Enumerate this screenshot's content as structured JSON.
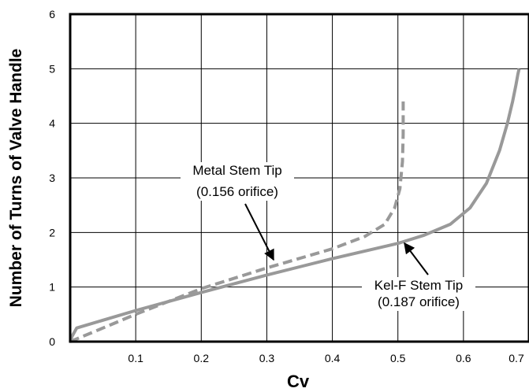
{
  "chart_data": {
    "type": "line",
    "xlabel": "Cv",
    "ylabel": "Number of Turns of Valve Handle",
    "xlim": [
      0,
      0.7
    ],
    "ylim": [
      0,
      6
    ],
    "x_ticks": [
      "0.1",
      "0.2",
      "0.3",
      "0.4",
      "0.5",
      "0.6",
      "0.7"
    ],
    "y_ticks": [
      "0",
      "1",
      "2",
      "3",
      "4",
      "5",
      "6"
    ],
    "grid": true,
    "series": [
      {
        "name": "Kel-F Stem Tip (0.187 orifice)",
        "style": "solid",
        "color": "#999999",
        "x": [
          0.0,
          0.003,
          0.01,
          0.1,
          0.2,
          0.3,
          0.4,
          0.5,
          0.54,
          0.58,
          0.61,
          0.635,
          0.655,
          0.667,
          0.675,
          0.68,
          0.683,
          0.685
        ],
        "y": [
          0.0,
          0.1,
          0.25,
          0.57,
          0.9,
          1.22,
          1.52,
          1.8,
          1.95,
          2.15,
          2.45,
          2.9,
          3.5,
          4.0,
          4.4,
          4.7,
          4.9,
          5.0
        ]
      },
      {
        "name": "Metal Stem Tip (0.156 orifice)",
        "style": "dashed",
        "color": "#999999",
        "x": [
          0.0,
          0.05,
          0.1,
          0.2,
          0.3,
          0.4,
          0.45,
          0.48,
          0.495,
          0.503,
          0.507,
          0.508,
          0.508
        ],
        "y": [
          0.0,
          0.25,
          0.5,
          0.97,
          1.35,
          1.7,
          1.93,
          2.15,
          2.45,
          2.8,
          3.3,
          3.8,
          4.4
        ]
      }
    ],
    "annotations": [
      {
        "lines": [
          "Metal Stem Tip",
          "(0.156 orifice)"
        ],
        "target": "Metal Stem Tip (0.156 orifice)"
      },
      {
        "lines": [
          "Kel-F Stem Tip",
          "(0.187 orifice)"
        ],
        "target": "Kel-F Stem Tip (0.187 orifice)"
      }
    ]
  }
}
